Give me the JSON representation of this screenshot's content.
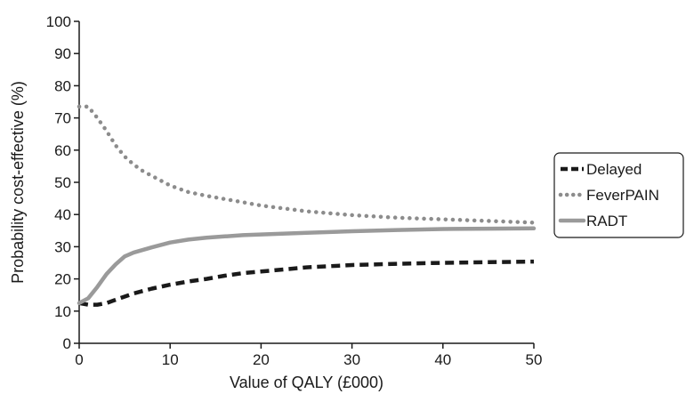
{
  "chart_data": {
    "type": "line",
    "xlabel": "Value of QALY (£000)",
    "ylabel": "Probability cost-effective (%)",
    "xlim": [
      0,
      50
    ],
    "ylim": [
      0,
      100
    ],
    "x_ticks": [
      "0",
      "10",
      "20",
      "30",
      "40",
      "50"
    ],
    "y_ticks": [
      "0",
      "10",
      "20",
      "30",
      "40",
      "50",
      "60",
      "70",
      "80",
      "90",
      "100"
    ],
    "grid": false,
    "legend_position": "right",
    "series": [
      {
        "name": "Delayed",
        "style": "dashed",
        "color": "#1a1a1a",
        "x": [
          0,
          1,
          2,
          3,
          4,
          5,
          6,
          8,
          10,
          12,
          14,
          16,
          18,
          20,
          25,
          30,
          35,
          40,
          45,
          50
        ],
        "y": [
          12.5,
          12.0,
          12.0,
          12.5,
          13.5,
          14.5,
          15.5,
          17.0,
          18.2,
          19.2,
          20.0,
          21.0,
          21.8,
          22.3,
          23.6,
          24.3,
          24.7,
          25.0,
          25.2,
          25.4
        ]
      },
      {
        "name": "FeverPAIN",
        "style": "dotted",
        "color": "#8c8c8c",
        "x": [
          0,
          1,
          2,
          3,
          4,
          5,
          6,
          7,
          8,
          10,
          12,
          14,
          16,
          18,
          20,
          25,
          30,
          35,
          40,
          45,
          50
        ],
        "y": [
          73.5,
          73.5,
          70.0,
          66.0,
          61.5,
          58.0,
          55.5,
          53.5,
          52.0,
          49.0,
          47.0,
          45.8,
          44.8,
          43.8,
          42.8,
          41.0,
          39.8,
          39.0,
          38.5,
          38.0,
          37.5
        ]
      },
      {
        "name": "RADT",
        "style": "solid",
        "color": "#9a9a9a",
        "x": [
          0,
          1,
          2,
          3,
          4,
          5,
          6,
          8,
          10,
          12,
          14,
          16,
          18,
          20,
          25,
          30,
          35,
          40,
          45,
          50
        ],
        "y": [
          12.5,
          14.0,
          17.5,
          21.5,
          24.5,
          27.0,
          28.2,
          29.8,
          31.3,
          32.2,
          32.8,
          33.2,
          33.6,
          33.8,
          34.3,
          34.8,
          35.2,
          35.5,
          35.6,
          35.7
        ]
      }
    ]
  }
}
